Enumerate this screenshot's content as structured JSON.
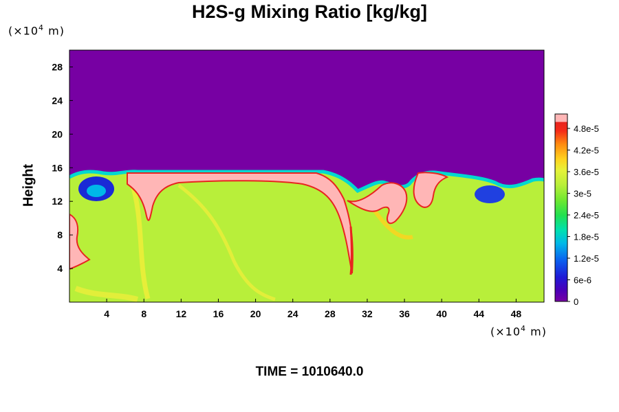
{
  "chart_data": {
    "type": "heatmap",
    "title": "H2S-g Mixing Ratio [kg/kg]",
    "ylabel": "Height",
    "x_unit": {
      "prefix": "(×10",
      "exponent": "4",
      "suffix": " m)"
    },
    "y_unit": {
      "prefix": "(×10",
      "exponent": "4",
      "suffix": " m)"
    },
    "x_ticks": [
      4,
      8,
      12,
      16,
      20,
      24,
      28,
      32,
      36,
      40,
      44,
      48
    ],
    "y_ticks": [
      4,
      8,
      12,
      16,
      20,
      24,
      28
    ],
    "xlim": [
      0,
      51
    ],
    "ylim": [
      0,
      30
    ],
    "colorbar": {
      "tick_labels": [
        "4.8e-5",
        "4.2e-5",
        "3.6e-5",
        "3e-5",
        "2.4e-5",
        "1.8e-5",
        "1.2e-5",
        "6e-6",
        "0"
      ],
      "tick_values": [
        4.8e-05,
        4.2e-05,
        3.6e-05,
        3e-05,
        2.4e-05,
        1.8e-05,
        1.2e-05,
        6e-06,
        0
      ],
      "range": [
        0,
        5.2e-05
      ]
    },
    "field_description_levels": {
      "upper_background": 0,
      "lower_background": 3.1e-05,
      "maximum_plumes": 5.2e-05
    },
    "colors": {
      "background_top": "#7700a3",
      "lower_field": "#b8ef3a",
      "plume": "#ffb6b6",
      "plume_edge": "#e8241f"
    },
    "footer": "TIME = 1010640.0"
  }
}
